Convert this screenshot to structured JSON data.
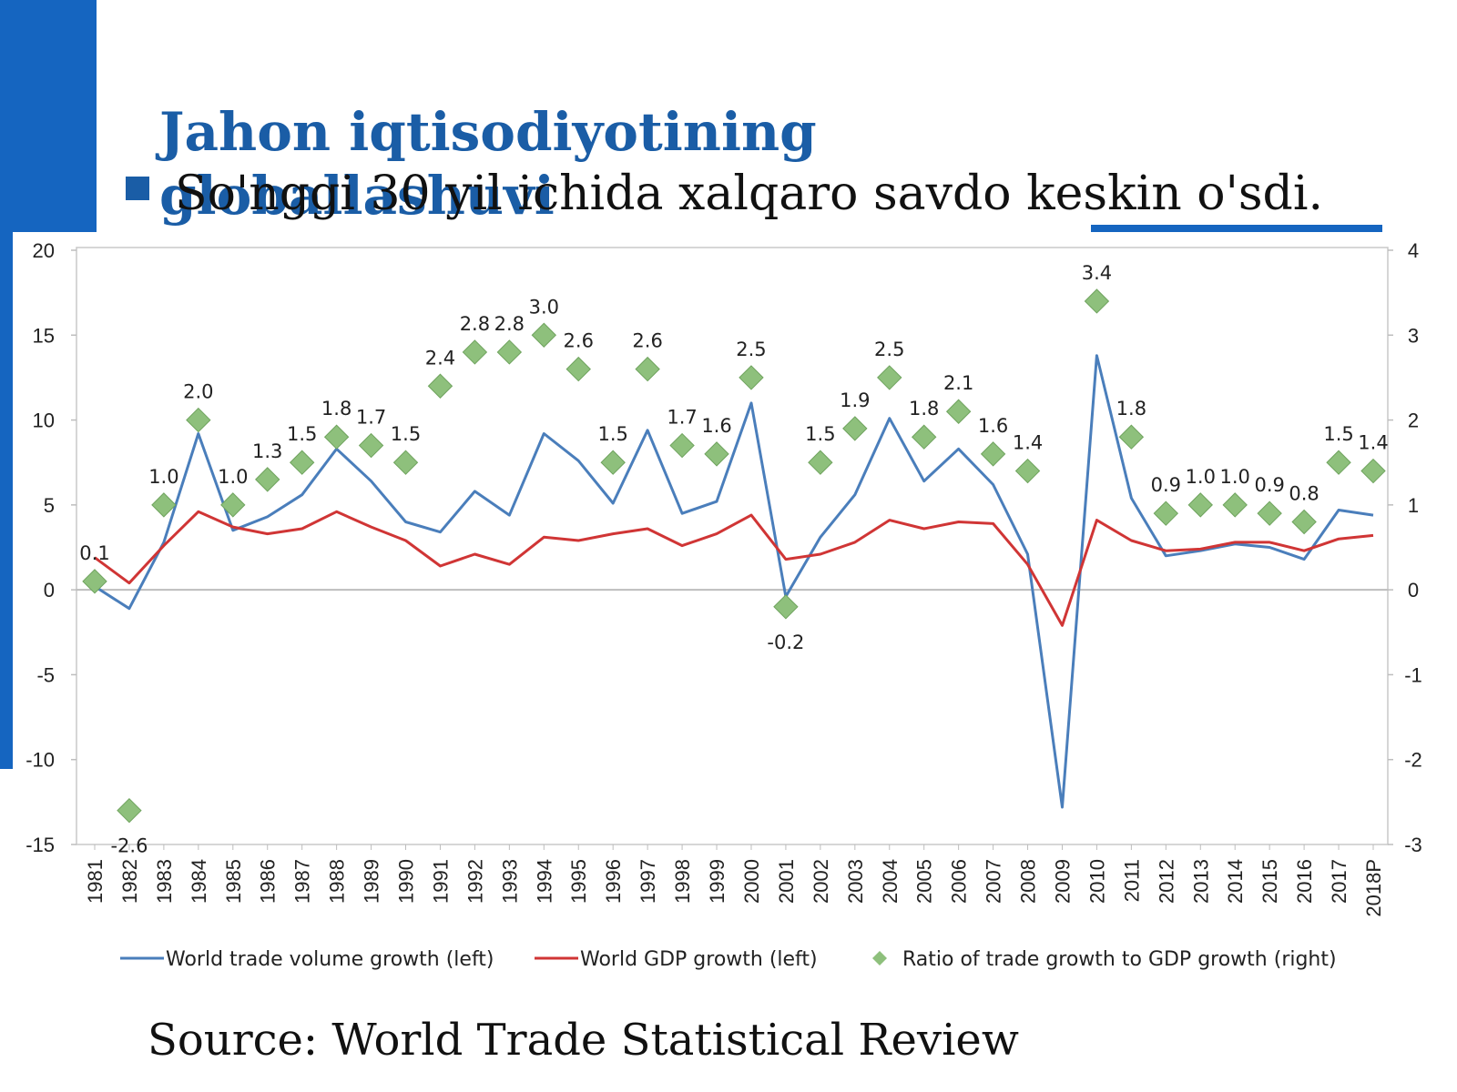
{
  "slide": {
    "title": "Jahon iqtisodiyotining globallashuvi",
    "bullet": "So'nggi 30 yil ichida xalqaro savdo keskin o'sdi.",
    "source": "Source: World Trade Statistical Review"
  },
  "colors": {
    "accent": "#1565c0",
    "title": "#1a5da6",
    "trade": "#4a7ebb",
    "gdp": "#d03535",
    "ratio": "#8ec07c"
  },
  "chart_data": {
    "type": "line",
    "categories": [
      "1981",
      "1982",
      "1983",
      "1984",
      "1985",
      "1986",
      "1987",
      "1988",
      "1989",
      "1990",
      "1991",
      "1992",
      "1993",
      "1994",
      "1995",
      "1996",
      "1997",
      "1998",
      "1999",
      "2000",
      "2001",
      "2002",
      "2003",
      "2004",
      "2005",
      "2006",
      "2007",
      "2008",
      "2009",
      "2010",
      "2011",
      "2012",
      "2013",
      "2014",
      "2015",
      "2016",
      "2017",
      "2018P"
    ],
    "series": [
      {
        "name": "World trade volume growth (left)",
        "axis": "left",
        "style": "line",
        "values": [
          0.2,
          -1.1,
          2.8,
          9.2,
          3.5,
          4.3,
          5.6,
          8.3,
          6.4,
          4.0,
          3.4,
          5.8,
          4.4,
          9.2,
          7.6,
          5.1,
          9.4,
          4.5,
          5.2,
          11.0,
          -0.4,
          3.1,
          5.6,
          10.1,
          6.4,
          8.3,
          6.2,
          2.1,
          -12.8,
          13.8,
          5.4,
          2.0,
          2.3,
          2.7,
          2.5,
          1.8,
          4.7,
          4.4
        ]
      },
      {
        "name": "World GDP growth (left)",
        "axis": "left",
        "style": "line",
        "values": [
          1.9,
          0.4,
          2.6,
          4.6,
          3.7,
          3.3,
          3.6,
          4.6,
          3.7,
          2.9,
          1.4,
          2.1,
          1.5,
          3.1,
          2.9,
          3.3,
          3.6,
          2.6,
          3.3,
          4.4,
          1.8,
          2.1,
          2.8,
          4.1,
          3.6,
          4.0,
          3.9,
          1.5,
          -2.1,
          4.1,
          2.9,
          2.3,
          2.4,
          2.8,
          2.8,
          2.3,
          3.0,
          3.2
        ]
      },
      {
        "name": "Ratio of trade growth to GDP growth (right)",
        "axis": "right",
        "style": "marker",
        "values": [
          0.1,
          -2.6,
          1.0,
          2.0,
          1.0,
          1.3,
          1.5,
          1.8,
          1.7,
          1.5,
          2.4,
          2.8,
          2.8,
          3.0,
          2.6,
          1.5,
          2.6,
          1.7,
          1.6,
          2.5,
          -0.2,
          1.5,
          1.9,
          2.5,
          1.8,
          2.1,
          1.6,
          1.4,
          null,
          3.4,
          1.8,
          0.9,
          1.0,
          1.0,
          0.9,
          0.8,
          1.5,
          1.4
        ],
        "labels": [
          "0.1",
          "-2.6",
          "1.0",
          "2.0",
          "1.0",
          "1.3",
          "1.5",
          "1.8",
          "1.7",
          "1.5",
          "2.4",
          "2.8",
          "2.8",
          "3.0",
          "2.6",
          "1.5",
          "2.6",
          "1.7",
          "1.6",
          "2.5",
          "-0.2",
          "1.5",
          "1.9",
          "2.5",
          "1.8",
          "2.1",
          "1.6",
          "1.4",
          "",
          "3.4",
          "1.8",
          "0.9",
          "1.0",
          "1.0",
          "0.9",
          "0.8",
          "1.5",
          "1.4"
        ]
      }
    ],
    "y_left": {
      "min": -15,
      "max": 20,
      "ticks": [
        20,
        15,
        10,
        5,
        0,
        -5,
        -10,
        -15
      ]
    },
    "y_right": {
      "min": -3,
      "max": 4,
      "ticks": [
        4,
        3,
        2,
        1,
        0,
        -1,
        -2,
        -3
      ]
    },
    "legend_position": "bottom",
    "grid": false
  }
}
